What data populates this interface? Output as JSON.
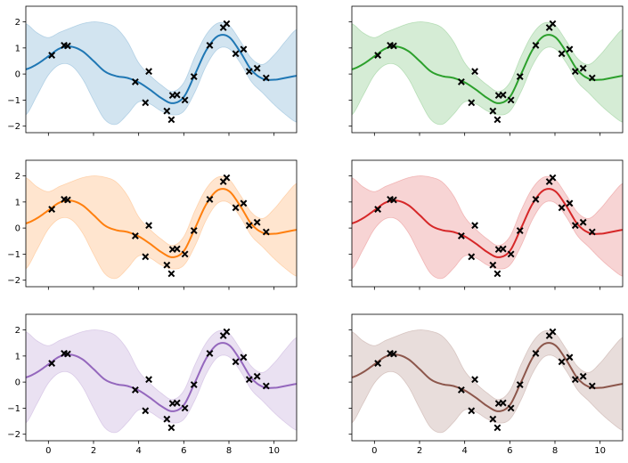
{
  "chart_data": {
    "type": "line",
    "layout": "3x2 grid of subplots, shared x axis per column, shared y axis per row",
    "xlim": [
      -1,
      11
    ],
    "ylim": [
      -2.25,
      2.6
    ],
    "xticks": [
      0,
      2,
      4,
      6,
      8,
      10
    ],
    "yticks": [
      -2,
      -1,
      0,
      1,
      2
    ],
    "xtick_labels": [
      "0",
      "2",
      "4",
      "6",
      "8",
      "10"
    ],
    "ytick_labels": [
      "−2",
      "−1",
      "0",
      "1",
      "2"
    ],
    "observations": {
      "marker": "x",
      "color": "#000000",
      "x": [
        0.15,
        0.7,
        0.85,
        3.85,
        4.3,
        4.45,
        5.25,
        5.45,
        5.5,
        5.7,
        6.05,
        6.45,
        7.15,
        7.75,
        7.9,
        8.3,
        8.65,
        8.9,
        9.25,
        9.65
      ],
      "y": [
        0.72,
        1.1,
        1.08,
        -0.3,
        -1.1,
        0.1,
        -1.42,
        -1.75,
        -0.82,
        -0.8,
        -1.0,
        -0.1,
        1.1,
        1.78,
        1.93,
        0.78,
        0.95,
        0.1,
        0.22,
        -0.15
      ]
    },
    "mean": {
      "x": [
        -1,
        -0.5,
        0,
        0.5,
        1,
        1.5,
        2,
        2.5,
        3,
        3.5,
        4,
        4.5,
        5,
        5.5,
        6,
        6.5,
        7,
        7.5,
        8,
        8.5,
        9,
        9.5,
        10,
        10.5,
        11
      ],
      "y": [
        0.18,
        0.38,
        0.68,
        0.98,
        1.05,
        0.88,
        0.5,
        0.1,
        -0.08,
        -0.15,
        -0.32,
        -0.6,
        -0.92,
        -1.12,
        -0.88,
        0.0,
        0.92,
        1.45,
        1.42,
        0.85,
        0.15,
        -0.18,
        -0.22,
        -0.15,
        -0.07
      ]
    },
    "band_halfwidth": {
      "x": [
        -1,
        -0.5,
        0,
        0.5,
        1,
        1.5,
        2,
        2.5,
        3,
        3.5,
        4,
        4.5,
        5,
        5.5,
        6,
        6.5,
        7,
        7.5,
        8,
        8.5,
        9,
        9.5,
        10,
        10.5,
        11
      ],
      "y": [
        1.75,
        1.2,
        0.72,
        0.62,
        0.72,
        1.05,
        1.5,
        1.85,
        1.85,
        1.4,
        0.75,
        0.55,
        0.5,
        0.45,
        0.55,
        0.68,
        0.6,
        0.5,
        0.45,
        0.42,
        0.45,
        0.55,
        0.95,
        1.4,
        1.78
      ]
    },
    "panels": [
      {
        "row": 0,
        "col": 0,
        "color": "#1f77b4",
        "band_color": "#1f77b4"
      },
      {
        "row": 0,
        "col": 1,
        "color": "#2ca02c",
        "band_color": "#2ca02c"
      },
      {
        "row": 1,
        "col": 0,
        "color": "#ff7f0e",
        "band_color": "#ff7f0e"
      },
      {
        "row": 1,
        "col": 1,
        "color": "#d62728",
        "band_color": "#d62728"
      },
      {
        "row": 2,
        "col": 0,
        "color": "#9467bd",
        "band_color": "#9467bd"
      },
      {
        "row": 2,
        "col": 1,
        "color": "#8c564b",
        "band_color": "#8c564b"
      }
    ]
  }
}
